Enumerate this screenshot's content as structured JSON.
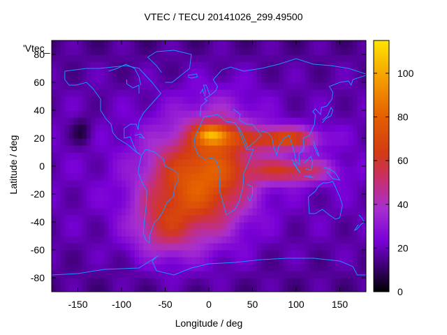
{
  "chart_data": {
    "type": "heatmap",
    "title": "VTEC / TECU 20141026_299.49500",
    "xlabel": "Longitude / deg",
    "ylabel": "Latitude / deg",
    "key_label": "'Vtec_",
    "xlim": [
      -180,
      180
    ],
    "ylim": [
      -90,
      90
    ],
    "xticks": [
      -150,
      -100,
      -50,
      0,
      50,
      100,
      150
    ],
    "yticks": [
      -80,
      -60,
      -40,
      -20,
      0,
      20,
      40,
      60,
      80
    ],
    "colorbar": {
      "min": 0,
      "max": 115,
      "ticks": [
        0,
        20,
        40,
        60,
        80,
        100
      ]
    },
    "grid": false,
    "regions": [
      {
        "name": "background-high-latitude",
        "value": 15
      },
      {
        "name": "dark-spot-north-pacific",
        "lon": -145,
        "lat": 25,
        "value": 3
      },
      {
        "name": "south-atlantic-anomaly",
        "lon": -35,
        "lat": -20,
        "value": 70
      },
      {
        "name": "north-africa-peak",
        "lon": 15,
        "lat": 22,
        "value": 112
      },
      {
        "name": "central-africa",
        "lon": 15,
        "lat": -5,
        "value": 85
      },
      {
        "name": "south-asia-band",
        "lon": 85,
        "lat": 20,
        "value": 70
      },
      {
        "name": "equatorial-indian-ocean",
        "lon": 100,
        "lat": -5,
        "value": 60
      }
    ]
  }
}
